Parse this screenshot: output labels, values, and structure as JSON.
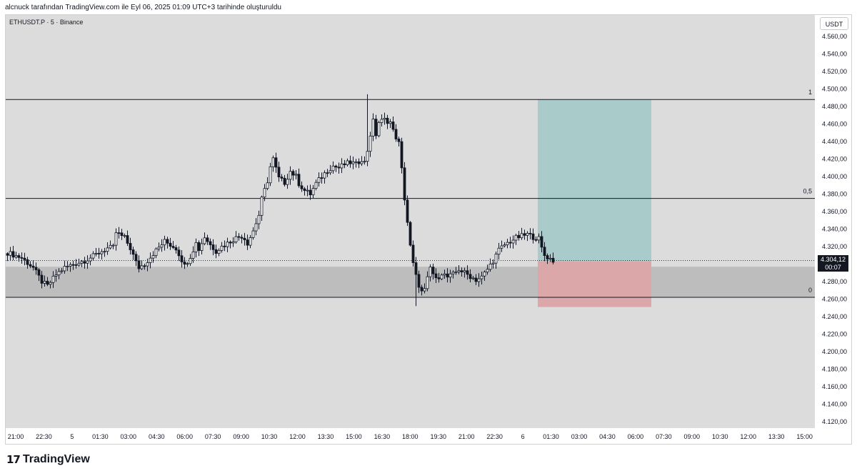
{
  "caption": "alcnuck tarafından TradingView.com ile Eyl 06, 2025 01:09 UTC+3 tarihinde oluşturuldu",
  "symbol": "ETHUSDT.P · 5 · Binance",
  "currency": "USDT",
  "last_price": "4.304,12",
  "countdown": "00:07",
  "brand": "TradingView",
  "colors": {
    "background": "#dcdcdc",
    "candle": "#131722",
    "tp_zone": "#a9cbca",
    "sl_zone": "#dca7a8",
    "demand_zone": "#bdbdbd"
  },
  "icons": {
    "logo": "tradingview-logo-icon"
  },
  "chart_data": {
    "type": "candlestick",
    "y_axis": {
      "ylim": [
        4110,
        4580
      ],
      "tick_values": [
        4120,
        4140,
        4160,
        4180,
        4200,
        4220,
        4240,
        4260,
        4280,
        4300,
        4320,
        4340,
        4360,
        4380,
        4400,
        4420,
        4440,
        4460,
        4480,
        4500,
        4520,
        4540,
        4560
      ],
      "tick_labels": [
        "4.120,00",
        "4.140,00",
        "4.160,00",
        "4.180,00",
        "4.200,00",
        "4.220,00",
        "4.240,00",
        "4.260,00",
        "4.280,00",
        "4.300,00",
        "4.320,00",
        "4.340,00",
        "4.360,00",
        "4.380,00",
        "4.400,00",
        "4.420,00",
        "4.440,00",
        "4.460,00",
        "4.480,00",
        "4.500,00",
        "4.520,00",
        "4.540,00",
        "4.560,00"
      ]
    },
    "x_axis": {
      "tick_labels": [
        "21:00",
        "22:30",
        "5",
        "01:30",
        "03:00",
        "04:30",
        "06:00",
        "07:30",
        "09:00",
        "10:30",
        "12:00",
        "13:30",
        "15:00",
        "16:30",
        "18:00",
        "19:30",
        "21:00",
        "22:30",
        "6",
        "01:30",
        "03:00",
        "04:30",
        "06:00",
        "07:30",
        "09:00",
        "10:30",
        "12:00",
        "13:30",
        "15:00"
      ]
    },
    "price_path": [
      [
        0,
        4313
      ],
      [
        5,
        4307
      ],
      [
        9,
        4296
      ],
      [
        12,
        4280
      ],
      [
        14,
        4275
      ],
      [
        17,
        4288
      ],
      [
        20,
        4296
      ],
      [
        24,
        4301
      ],
      [
        27,
        4304
      ],
      [
        30,
        4309
      ],
      [
        32,
        4313
      ],
      [
        35,
        4318
      ],
      [
        37,
        4319
      ],
      [
        38,
        4336
      ],
      [
        41,
        4330
      ],
      [
        43,
        4318
      ],
      [
        45,
        4302
      ],
      [
        46,
        4296
      ],
      [
        48,
        4300
      ],
      [
        51,
        4312
      ],
      [
        53,
        4319
      ],
      [
        55,
        4326
      ],
      [
        57,
        4322
      ],
      [
        59,
        4318
      ],
      [
        61,
        4305
      ],
      [
        62,
        4298
      ],
      [
        64,
        4309
      ],
      [
        66,
        4324
      ],
      [
        67,
        4317
      ],
      [
        69,
        4331
      ],
      [
        71,
        4322
      ],
      [
        73,
        4315
      ],
      [
        75,
        4320
      ],
      [
        77,
        4324
      ],
      [
        80,
        4330
      ],
      [
        82,
        4332
      ],
      [
        83,
        4329
      ],
      [
        84,
        4324
      ],
      [
        86,
        4338
      ],
      [
        88,
        4356
      ],
      [
        89,
        4374
      ],
      [
        91,
        4395
      ],
      [
        92,
        4411
      ],
      [
        93,
        4420
      ],
      [
        95,
        4398
      ],
      [
        97,
        4393
      ],
      [
        99,
        4406
      ],
      [
        101,
        4400
      ],
      [
        102,
        4392
      ],
      [
        104,
        4384
      ],
      [
        106,
        4380
      ],
      [
        108,
        4392
      ],
      [
        110,
        4400
      ],
      [
        112,
        4407
      ],
      [
        114,
        4412
      ],
      [
        116,
        4410
      ],
      [
        118,
        4414
      ],
      [
        120,
        4416
      ],
      [
        122,
        4414
      ],
      [
        124,
        4420
      ],
      [
        125,
        4416
      ],
      [
        126,
        4430
      ],
      [
        127,
        4448
      ],
      [
        128,
        4463
      ],
      [
        129,
        4448
      ],
      [
        130,
        4462
      ],
      [
        132,
        4465
      ],
      [
        134,
        4462
      ],
      [
        135,
        4452
      ],
      [
        137,
        4438
      ],
      [
        138,
        4408
      ],
      [
        139,
        4375
      ],
      [
        140,
        4348
      ],
      [
        141,
        4320
      ],
      [
        142,
        4300
      ],
      [
        143,
        4286
      ],
      [
        144,
        4276
      ],
      [
        145,
        4268
      ],
      [
        146,
        4270
      ],
      [
        147,
        4283
      ],
      [
        148,
        4296
      ],
      [
        150,
        4282
      ],
      [
        152,
        4290
      ],
      [
        154,
        4285
      ],
      [
        156,
        4288
      ],
      [
        158,
        4294
      ],
      [
        160,
        4290
      ],
      [
        162,
        4286
      ],
      [
        164,
        4282
      ],
      [
        166,
        4285
      ],
      [
        168,
        4294
      ],
      [
        170,
        4304
      ],
      [
        172,
        4316
      ],
      [
        174,
        4322
      ],
      [
        176,
        4326
      ],
      [
        178,
        4330
      ],
      [
        180,
        4332
      ],
      [
        182,
        4334
      ],
      [
        184,
        4331
      ],
      [
        186,
        4329
      ],
      [
        187,
        4318
      ],
      [
        188,
        4310
      ],
      [
        190,
        4306
      ],
      [
        191,
        4304
      ]
    ],
    "spikes": [
      {
        "bar": 126,
        "high": 4494
      },
      {
        "bar": 143,
        "low": 4252
      }
    ],
    "annotations": {
      "fib_levels": [
        {
          "label": "1",
          "price": 4488
        },
        {
          "label": "0,5",
          "price": 4375
        },
        {
          "label": "0",
          "price": 4262
        }
      ],
      "demand_zone": {
        "top": 4297,
        "bottom": 4262
      },
      "long_position": {
        "entry": 4303,
        "target": 4488,
        "stop": 4251,
        "start_bar": 185,
        "end_bar": 226
      },
      "last_price_line": 4304.12
    }
  }
}
